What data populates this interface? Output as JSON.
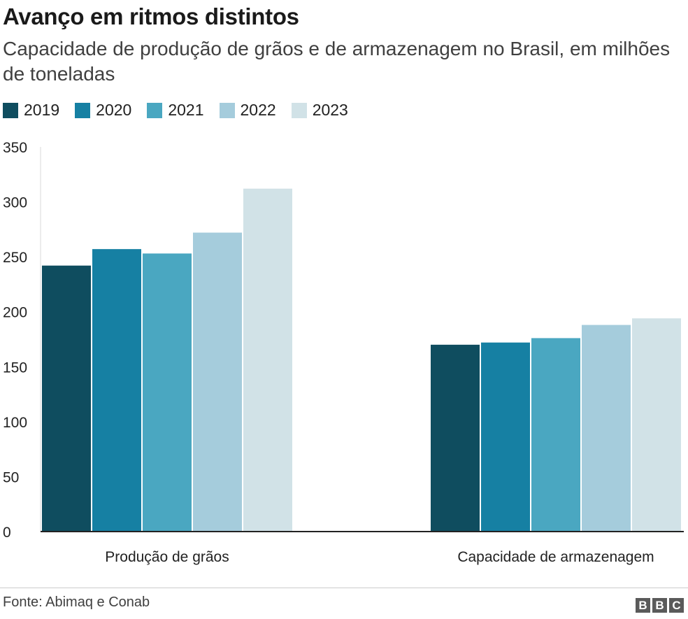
{
  "chart_data": {
    "type": "bar",
    "title": "Avanço em ritmos distintos",
    "subtitle": "Capacidade de produção de grãos e de armazenagem no Brasil, em milhões de toneladas",
    "categories": [
      "Produção de grãos",
      "Capacidade de armazenagem"
    ],
    "series": [
      {
        "name": "2019",
        "color": "#0f4d5f",
        "values": [
          242,
          170
        ]
      },
      {
        "name": "2020",
        "color": "#1680a3",
        "values": [
          257,
          172
        ]
      },
      {
        "name": "2021",
        "color": "#4aa7c1",
        "values": [
          253,
          176
        ]
      },
      {
        "name": "2022",
        "color": "#a5ccdc",
        "values": [
          272,
          188
        ]
      },
      {
        "name": "2023",
        "color": "#d1e2e7",
        "values": [
          312,
          194
        ]
      }
    ],
    "yticks": [
      0,
      50,
      100,
      150,
      200,
      250,
      300,
      350
    ],
    "ylim": [
      0,
      350
    ],
    "grid": false,
    "legend": "top-left",
    "source": "Fonte: Abimaq e Conab"
  },
  "logo": [
    "B",
    "B",
    "C"
  ]
}
